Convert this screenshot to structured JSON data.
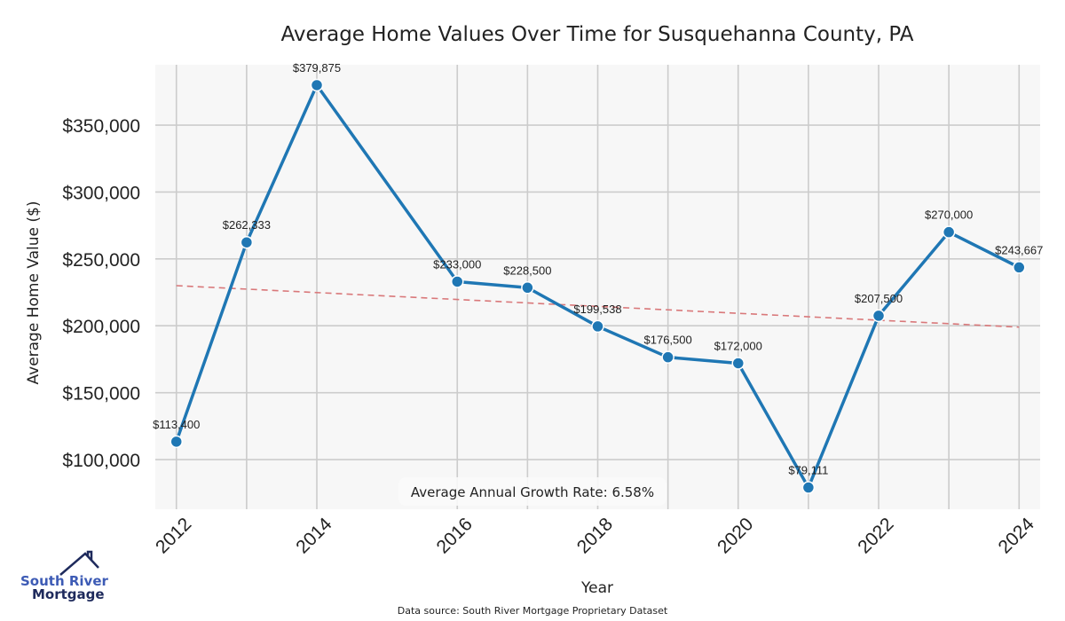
{
  "chart_data": {
    "type": "line",
    "title": "Average Home Values Over Time for Susquehanna County, PA",
    "xlabel": "Year",
    "ylabel": "Average Home Value ($)",
    "x": [
      2012,
      2013,
      2014,
      2016,
      2017,
      2018,
      2019,
      2020,
      2021,
      2022,
      2023,
      2024
    ],
    "series": [
      {
        "name": "Average Home Value",
        "color": "#1f77b4",
        "values": [
          113400,
          262333,
          379875,
          233000,
          228500,
          199538,
          176500,
          172000,
          79111,
          207500,
          270000,
          243667
        ],
        "labels": [
          "$113,400",
          "$262,333",
          "$379,875",
          "$233,000",
          "$228,500",
          "$199,538",
          "$176,500",
          "$172,000",
          "$79,111",
          "$207,500",
          "$270,000",
          "$243,667"
        ]
      }
    ],
    "trendline": {
      "name": "Trend",
      "color": "#d9787a",
      "style": "dashed",
      "start": [
        2012,
        230000
      ],
      "end": [
        2024,
        199000
      ]
    },
    "xticks": [
      2012,
      2014,
      2016,
      2018,
      2020,
      2022,
      2024
    ],
    "xtick_labels": [
      "2012",
      "2014",
      "2016",
      "2018",
      "2020",
      "2022",
      "2024"
    ],
    "yticks": [
      100000,
      150000,
      200000,
      250000,
      300000,
      350000
    ],
    "ytick_labels": [
      "$100,000",
      "$150,000",
      "$200,000",
      "$250,000",
      "$300,000",
      "$350,000"
    ],
    "xlim": [
      2011.7,
      2024.3
    ],
    "ylim": [
      62900,
      395100
    ],
    "grid": true,
    "annotation": "Average Annual Growth Rate: 6.58%",
    "annotation_position": "bottom-center",
    "source_note": "Data source: South River Mortgage Proprietary Dataset"
  },
  "logo": {
    "line1": "South River",
    "line2": "Mortgage"
  },
  "colors": {
    "plot_bg": "#f7f7f7",
    "grid": "#cccccc",
    "line": "#1f77b4",
    "trend": "#d9787a",
    "logo_blue": "#3d5bb5",
    "logo_navy": "#1e2a5c"
  }
}
